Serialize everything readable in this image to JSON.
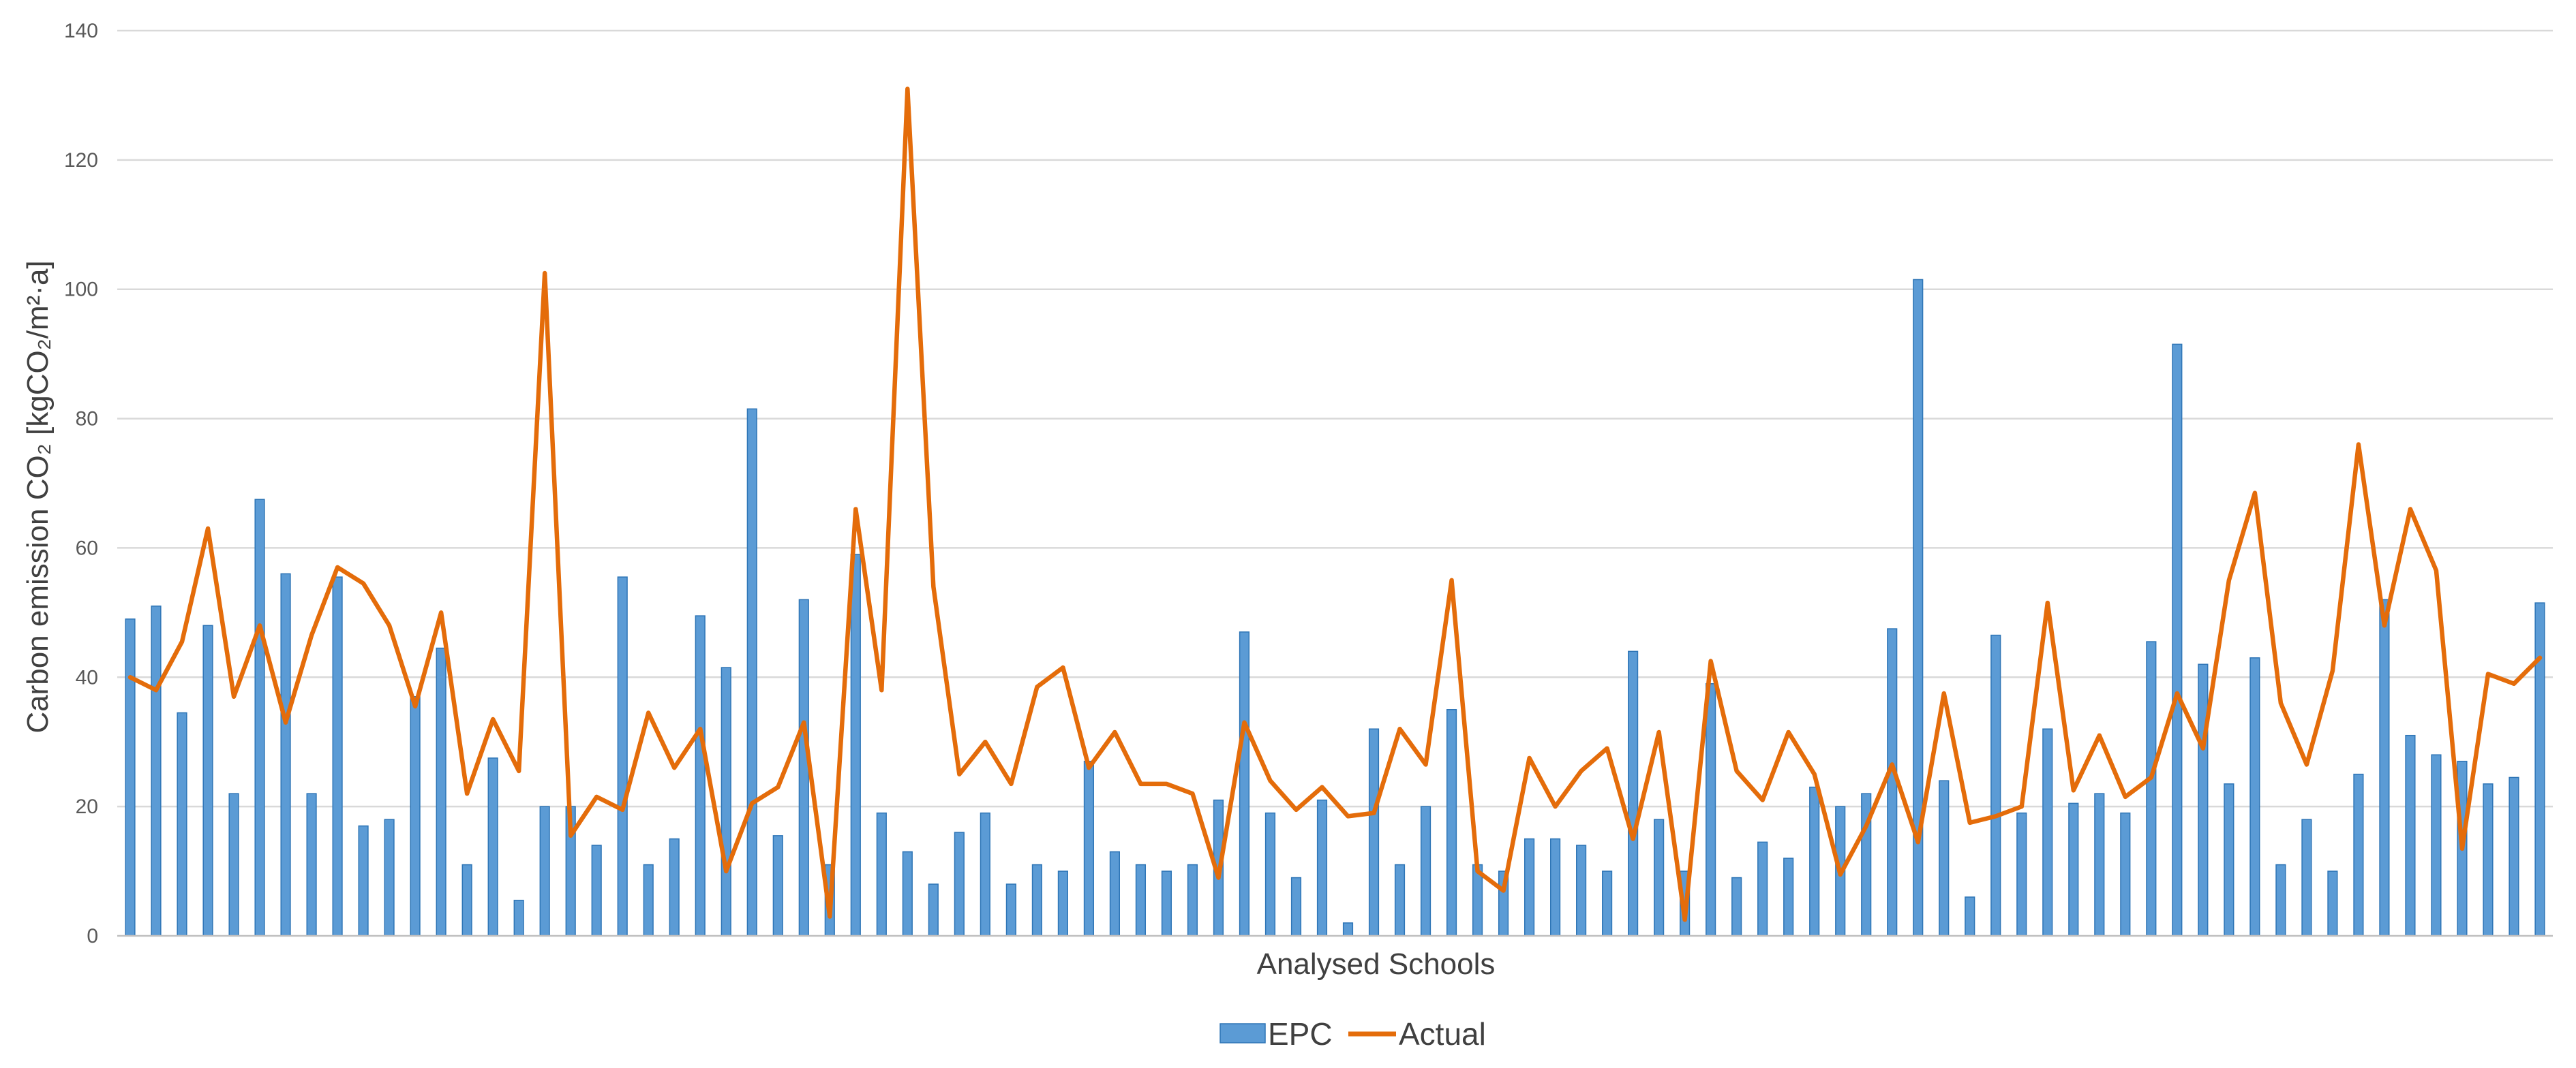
{
  "chart_data": {
    "type": "bar",
    "title": "",
    "xlabel": "Analysed Schools",
    "ylabel": "Carbon emission CO₂ [kgCO₂/m²·a]",
    "ylim": [
      0,
      140
    ],
    "yticks": [
      0,
      20,
      40,
      60,
      80,
      100,
      120,
      140
    ],
    "grid": true,
    "legend": {
      "position": "bottom-center",
      "entries": [
        "EPC",
        "Actual"
      ]
    },
    "colors": {
      "EPC": "#5B9BD5",
      "EPC_edge": "#2E75B6",
      "Actual": "#E46C0A",
      "grid": "#D9D9D9"
    },
    "series": [
      {
        "name": "EPC",
        "type": "bar",
        "values": [
          49,
          51,
          34.5,
          48,
          22,
          67.5,
          56,
          22,
          55.5,
          17,
          18,
          37,
          44.5,
          11,
          27.5,
          5.5,
          20,
          20,
          14,
          55.5,
          11,
          15,
          49.5,
          41.5,
          81.5,
          15.5,
          52,
          11,
          59,
          19,
          13,
          8,
          16,
          19,
          8,
          11,
          10,
          27,
          13,
          11,
          10,
          11,
          21,
          47,
          19,
          9,
          21,
          2,
          32,
          11,
          20,
          35,
          11,
          10,
          15,
          15,
          14,
          10,
          44,
          18,
          10,
          39,
          9,
          14.5,
          12,
          23,
          20,
          22,
          47.5,
          101.5,
          24,
          6,
          46.5,
          19,
          32,
          20.5,
          22,
          19,
          45.5,
          91.5,
          42,
          23.5,
          43,
          11,
          18,
          10,
          25,
          52,
          31,
          28,
          27,
          23.5,
          24.5,
          51.5
        ]
      },
      {
        "name": "Actual",
        "type": "line",
        "values": [
          40,
          38,
          45.5,
          63,
          37,
          48,
          33,
          46.5,
          57,
          54.5,
          48,
          35.5,
          50,
          22,
          33.5,
          25.5,
          102.5,
          15.5,
          21.5,
          19.5,
          34.5,
          26,
          32,
          10,
          20.5,
          23,
          33,
          3,
          66,
          38,
          131,
          54,
          25,
          30,
          23.5,
          38.5,
          41.5,
          26,
          31.5,
          23.5,
          23.5,
          22,
          9,
          33,
          24,
          19.5,
          23,
          18.5,
          19,
          32,
          26.5,
          55,
          10,
          7,
          27.5,
          20,
          25.5,
          29,
          15,
          31.5,
          2.5,
          42.5,
          25.5,
          21,
          31.5,
          25,
          9.5,
          17,
          26.5,
          14.5,
          37.5,
          17.5,
          18.5,
          20,
          51.5,
          22.5,
          31,
          21.5,
          24.5,
          37.5,
          29,
          55,
          68.5,
          36,
          26.5,
          41,
          76,
          48,
          66,
          56.5,
          13.5,
          40.5,
          39,
          43
        ]
      }
    ]
  }
}
